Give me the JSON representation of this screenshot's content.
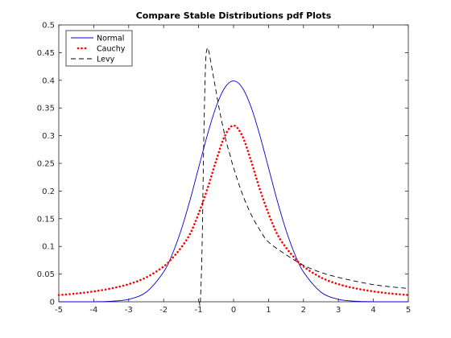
{
  "chart_data": {
    "type": "line",
    "title": "Compare Stable Distributions pdf Plots",
    "xlabel": "",
    "ylabel": "",
    "xlim": [
      -5,
      5
    ],
    "ylim": [
      0,
      0.5
    ],
    "xticks": [
      -5,
      -4,
      -3,
      -2,
      -1,
      0,
      1,
      2,
      3,
      4,
      5
    ],
    "yticks": [
      0,
      0.05,
      0.1,
      0.15,
      0.2,
      0.25,
      0.3,
      0.35,
      0.4,
      0.45,
      0.5
    ],
    "x_tick_labels": [
      "-5",
      "-4",
      "-3",
      "-2",
      "-1",
      "0",
      "1",
      "2",
      "3",
      "4",
      "5"
    ],
    "y_tick_labels": [
      "0",
      "0.05",
      "0.1",
      "0.15",
      "0.2",
      "0.25",
      "0.3",
      "0.35",
      "0.4",
      "0.45",
      "0.5"
    ],
    "grid": false,
    "legend_position": "top-left",
    "series": [
      {
        "name": "Normal",
        "style": "solid",
        "color": "#0000cc",
        "x": [
          -5,
          -4.5,
          -4,
          -3.5,
          -3,
          -2.5,
          -2,
          -1.75,
          -1.5,
          -1.25,
          -1,
          -0.75,
          -0.5,
          -0.25,
          0,
          0.25,
          0.5,
          0.75,
          1,
          1.25,
          1.5,
          1.75,
          2,
          2.5,
          3,
          3.5,
          4,
          4.5,
          5
        ],
        "y": [
          0.0,
          0.0,
          0.0001,
          0.0009,
          0.0044,
          0.0175,
          0.054,
          0.0863,
          0.1295,
          0.1826,
          0.242,
          0.3011,
          0.3521,
          0.3867,
          0.3989,
          0.3867,
          0.3521,
          0.3011,
          0.242,
          0.1826,
          0.1295,
          0.0863,
          0.054,
          0.0175,
          0.0044,
          0.0009,
          0.0001,
          0.0,
          0.0
        ]
      },
      {
        "name": "Cauchy",
        "style": "dotted",
        "color": "#ff0000",
        "x": [
          -5,
          -4.5,
          -4,
          -3.5,
          -3,
          -2.5,
          -2,
          -1.75,
          -1.5,
          -1.25,
          -1,
          -0.75,
          -0.5,
          -0.25,
          0,
          0.25,
          0.5,
          0.75,
          1,
          1.25,
          1.5,
          1.75,
          2,
          2.5,
          3,
          3.5,
          4,
          4.5,
          5
        ],
        "y": [
          0.0122,
          0.0149,
          0.0187,
          0.0241,
          0.0318,
          0.0439,
          0.0637,
          0.0791,
          0.0979,
          0.1221,
          0.1592,
          0.2037,
          0.2546,
          0.2996,
          0.3183,
          0.2996,
          0.2546,
          0.2037,
          0.1592,
          0.1221,
          0.0979,
          0.0791,
          0.0637,
          0.0439,
          0.0318,
          0.0241,
          0.0187,
          0.0149,
          0.0122
        ]
      },
      {
        "name": "Levy",
        "style": "dashed",
        "color": "#000000",
        "x": [
          -1.0,
          -0.98,
          -0.95,
          -0.9,
          -0.85,
          -0.8,
          -0.75,
          -0.7,
          -0.6,
          -0.5,
          -0.4,
          -0.3,
          -0.2,
          -0.1,
          0,
          0.25,
          0.5,
          0.75,
          1,
          1.5,
          2,
          2.5,
          3,
          3.5,
          4,
          4.5,
          5
        ],
        "y": [
          0.0,
          0.0,
          0.0004,
          0.1,
          0.3,
          0.43,
          0.458,
          0.45,
          0.415,
          0.38,
          0.345,
          0.315,
          0.287,
          0.265,
          0.242,
          0.195,
          0.158,
          0.13,
          0.108,
          0.085,
          0.066,
          0.053,
          0.044,
          0.037,
          0.031,
          0.027,
          0.024
        ]
      }
    ]
  }
}
